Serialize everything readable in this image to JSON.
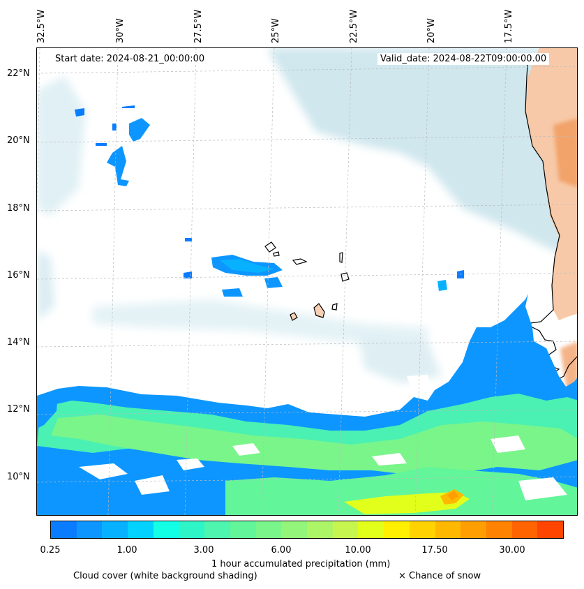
{
  "header": {
    "start_date": "Start date: 2024-08-21_00:00:00",
    "valid_date": "Valid_date: 2024-08-22T09:00:00.00"
  },
  "axes": {
    "longitude_labels": [
      "32.5°W",
      "30°W",
      "27.5°W",
      "25°W",
      "22.5°W",
      "20°W",
      "17.5°W"
    ],
    "latitude_labels": [
      "22°N",
      "20°N",
      "18°N",
      "16°N",
      "14°N",
      "12°N",
      "10°N"
    ]
  },
  "colorbar": {
    "label": "1 hour accumulated precipitation (mm)",
    "tick_labels": [
      "0.25",
      "1.00",
      "3.00",
      "6.00",
      "10.00",
      "17.50",
      "30.00"
    ],
    "colors": [
      "#0a7cff",
      "#0d96ff",
      "#08b1ff",
      "#03d2ff",
      "#12ffe6",
      "#2ef5c8",
      "#4ef5ae",
      "#62f59a",
      "#7af58a",
      "#93f57a",
      "#acf566",
      "#c6f550",
      "#e2ff1c",
      "#ffef00",
      "#ffd200",
      "#ffb800",
      "#ff9e00",
      "#ff8200",
      "#ff6400",
      "#ff4500"
    ]
  },
  "legend": {
    "cloud_cover": "Cloud cover (white background shading)",
    "snow": "× Chance of snow"
  },
  "colors": {
    "land": "#f7c9a8",
    "land_dark": "#f2a36a",
    "cloud": "#bfdfe8",
    "coast": "#000000"
  }
}
